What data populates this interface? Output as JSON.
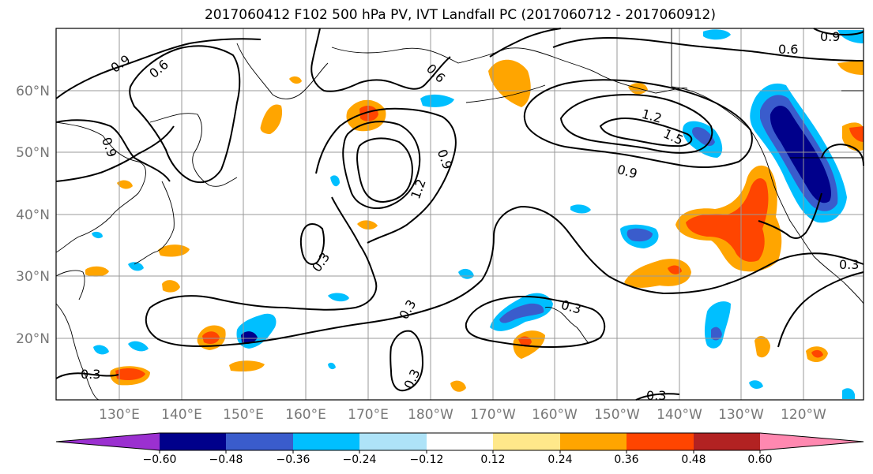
{
  "title": "2017060412 F102 500 hPa PV, IVT Landfall PC (2017060712 - 2017060912)",
  "lat_labels": [
    "60°N",
    "50°N",
    "40°N",
    "30°N",
    "20°N"
  ],
  "lon_labels": [
    "130°E",
    "140°E",
    "150°E",
    "160°E",
    "170°E",
    "180°W",
    "170°W",
    "160°W",
    "150°W",
    "140°W",
    "130°W",
    "120°W"
  ],
  "contour_labels": [
    "0.9",
    "0.6",
    "0.9",
    "0.6",
    "1.2",
    "1.5",
    "0.9",
    "0.6",
    "0.9",
    "1.2",
    "0.3",
    "0.3",
    "0.3",
    "0.3",
    "0.3",
    "0.3",
    "0.9",
    "0.3"
  ],
  "colorbar": {
    "ticks": [
      "−0.60",
      "−0.48",
      "−0.36",
      "−0.24",
      "−0.12",
      "0.12",
      "0.24",
      "0.36",
      "0.48",
      "0.60"
    ],
    "colors": [
      "#9b30d0",
      "#00008b",
      "#3a5ccc",
      "#00bfff",
      "#aee3f8",
      "#ffffff",
      "#ffe88a",
      "#ffa500",
      "#ff4500",
      "#b22222",
      "#ff88b0"
    ]
  },
  "fill_colors": {
    "neg_light": "#aee3f8",
    "neg_mid": "#00bfff",
    "neg_dark": "#3a5ccc",
    "neg_darkest": "#00008b",
    "pos_light": "#ffe88a",
    "pos_mid": "#ffa500",
    "pos_dark": "#ff4500"
  }
}
